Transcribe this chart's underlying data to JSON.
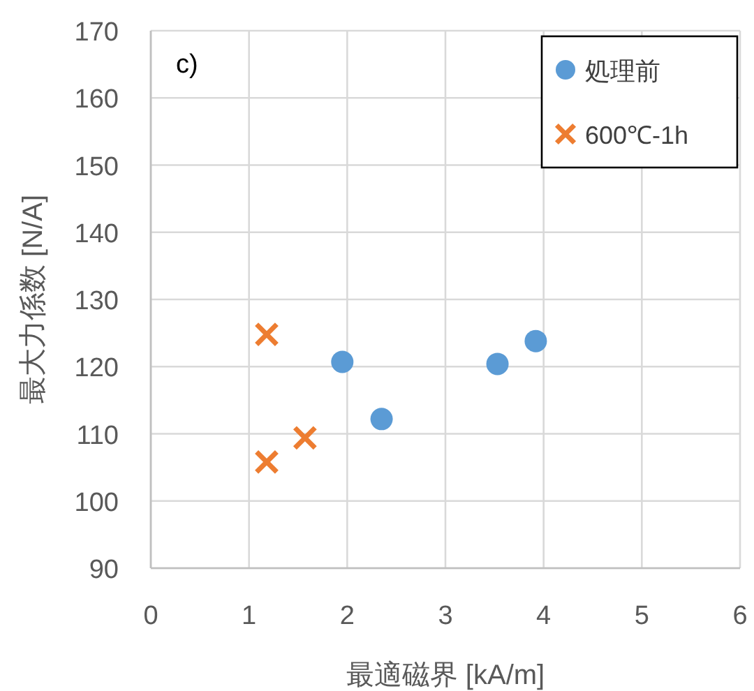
{
  "chart_data": {
    "type": "scatter",
    "xlabel": "最適磁界 [kA/m]",
    "ylabel": "最大力係数 [N/A]",
    "annotations": [
      "c)"
    ],
    "xlim": [
      0,
      6
    ],
    "xticks": [
      0,
      1,
      2,
      3,
      4,
      5,
      6
    ],
    "ylim": [
      90,
      170
    ],
    "yticks": [
      90,
      100,
      110,
      120,
      130,
      140,
      150,
      160,
      170
    ],
    "grid": true,
    "legend": "top right",
    "series": [
      {
        "name": "処理前",
        "color": "#5b9bd5",
        "marker": "circle",
        "x": [
          1.95,
          2.35,
          3.53,
          3.92
        ],
        "values": [
          120.7,
          112.2,
          120.4,
          123.8
        ]
      },
      {
        "name": "600℃-1h",
        "color": "#ed7d31",
        "marker": "cross",
        "x": [
          1.18,
          1.57,
          1.18
        ],
        "values": [
          124.8,
          109.4,
          105.8
        ]
      }
    ]
  }
}
